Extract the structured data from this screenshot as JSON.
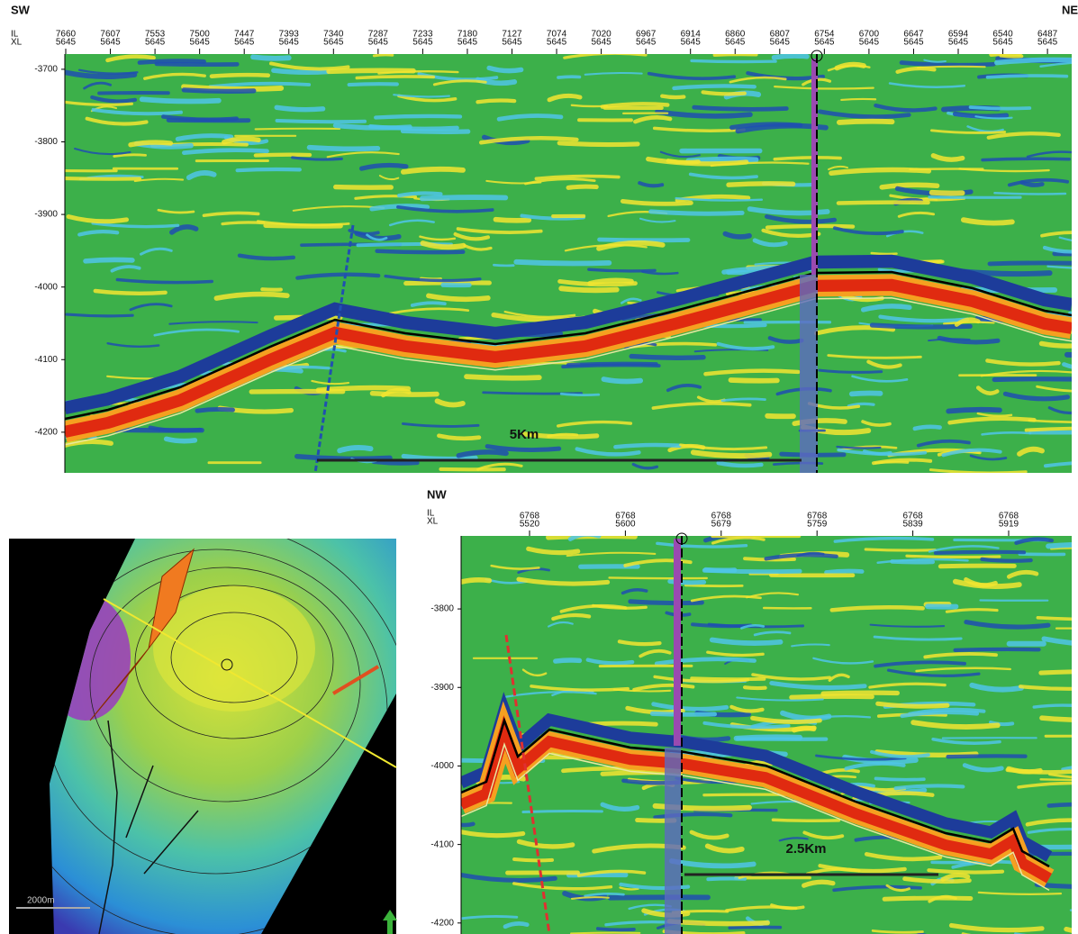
{
  "top_section": {
    "left_label": "SW",
    "right_label": "NE",
    "row_labels": [
      "IL",
      "XL"
    ],
    "traces": [
      {
        "il": 7660,
        "xl": 5645
      },
      {
        "il": 7607,
        "xl": 5645
      },
      {
        "il": 7553,
        "xl": 5645
      },
      {
        "il": 7500,
        "xl": 5645
      },
      {
        "il": 7447,
        "xl": 5645
      },
      {
        "il": 7393,
        "xl": 5645
      },
      {
        "il": 7340,
        "xl": 5645
      },
      {
        "il": 7287,
        "xl": 5645
      },
      {
        "il": 7233,
        "xl": 5645
      },
      {
        "il": 7180,
        "xl": 5645
      },
      {
        "il": 7127,
        "xl": 5645
      },
      {
        "il": 7074,
        "xl": 5645
      },
      {
        "il": 7020,
        "xl": 5645
      },
      {
        "il": 6967,
        "xl": 5645
      },
      {
        "il": 6914,
        "xl": 5645
      },
      {
        "il": 6860,
        "xl": 5645
      },
      {
        "il": 6807,
        "xl": 5645
      },
      {
        "il": 6754,
        "xl": 5645
      },
      {
        "il": 6700,
        "xl": 5645
      },
      {
        "il": 6647,
        "xl": 5645
      },
      {
        "il": 6594,
        "xl": 5645
      },
      {
        "il": 6540,
        "xl": 5645
      },
      {
        "il": 6487,
        "xl": 5645
      }
    ],
    "ylim": [
      -3679,
      -4256
    ],
    "yticks": [
      -3700,
      -3800,
      -3900,
      -4000,
      -4100,
      -4200
    ],
    "scale_bar": "5Km"
  },
  "bottom_section": {
    "left_label": "NW",
    "row_labels": [
      "IL",
      "XL"
    ],
    "traces": [
      {
        "il": 6768,
        "xl": 5520
      },
      {
        "il": 6768,
        "xl": 5600
      },
      {
        "il": 6768,
        "xl": 5679
      },
      {
        "il": 6768,
        "xl": 5759
      },
      {
        "il": 6768,
        "xl": 5839
      },
      {
        "il": 6768,
        "xl": 5919
      }
    ],
    "ylim": [
      -3707,
      -4214
    ],
    "yticks": [
      -3800,
      -3900,
      -4000,
      -4100,
      -4200
    ],
    "scale_bar": "2.5Km"
  },
  "map": {
    "scale_bar": "2000m"
  }
}
